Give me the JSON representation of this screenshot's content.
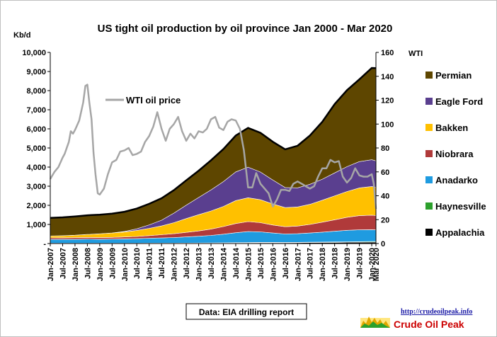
{
  "chart_data": {
    "type": "area",
    "title": "US tight oil production by oil province Jan 2000 - Mar 2020",
    "ylabel_left": "Kb/d",
    "ylabel_right": "WTI",
    "ylim_left": [
      0,
      10000
    ],
    "ylim_right": [
      0,
      160
    ],
    "yticks_left": [
      "-",
      "1,000",
      "2,000",
      "3,000",
      "4,000",
      "5,000",
      "6,000",
      "7,000",
      "8,000",
      "9,000",
      "10,000"
    ],
    "yticks_right": [
      "0",
      "20",
      "40",
      "60",
      "80",
      "100",
      "120",
      "140",
      "160"
    ],
    "x_tick_labels": [
      "Jan-2007",
      "Jul-2007",
      "Jan-2008",
      "Jul-2008",
      "Jan-2009",
      "Jul-2009",
      "Jan-2010",
      "Jul-2010",
      "Jan-2011",
      "Jul-2011",
      "Jan-2012",
      "Jul-2012",
      "Jan-2013",
      "Jul-2013",
      "Jan-2014",
      "Jul-2014",
      "Jan-2015",
      "Jul-2015",
      "Jan-2016",
      "Jul-2016",
      "Jan-2017",
      "Jul-2017",
      "Jan-2018",
      "Jul-2018",
      "Jan-2019",
      "Jul-2019",
      "Jan-2020",
      "Mar 2020"
    ],
    "x_tick_dates": [
      2007.0,
      2007.5,
      2008.0,
      2008.5,
      2009.0,
      2009.5,
      2010.0,
      2010.5,
      2011.0,
      2011.5,
      2012.0,
      2012.5,
      2013.0,
      2013.5,
      2014.0,
      2014.5,
      2015.0,
      2015.5,
      2016.0,
      2016.5,
      2017.0,
      2017.5,
      2018.0,
      2018.5,
      2019.0,
      2019.5,
      2020.0,
      2020.17
    ],
    "x_range": [
      2007.0,
      2020.17
    ],
    "x": [
      2007.0,
      2007.5,
      2008.0,
      2008.5,
      2009.0,
      2009.5,
      2010.0,
      2010.5,
      2011.0,
      2011.5,
      2012.0,
      2012.5,
      2013.0,
      2013.5,
      2014.0,
      2014.5,
      2015.0,
      2015.5,
      2016.0,
      2016.5,
      2017.0,
      2017.5,
      2018.0,
      2018.5,
      2019.0,
      2019.5,
      2020.0,
      2020.17
    ],
    "series": [
      {
        "name": "Appalachia",
        "color": "#000000",
        "values": [
          5,
          5,
          5,
          6,
          6,
          6,
          7,
          7,
          8,
          9,
          10,
          12,
          15,
          18,
          22,
          28,
          35,
          40,
          42,
          42,
          45,
          50,
          55,
          60,
          65,
          70,
          75,
          75
        ]
      },
      {
        "name": "Haynesville",
        "color": "#2ca02c",
        "values": [
          10,
          10,
          10,
          11,
          11,
          11,
          12,
          12,
          13,
          13,
          14,
          15,
          16,
          17,
          18,
          20,
          22,
          22,
          20,
          18,
          19,
          20,
          22,
          25,
          28,
          30,
          32,
          32
        ]
      },
      {
        "name": "Anadarko",
        "color": "#1f9be0",
        "values": [
          200,
          205,
          210,
          215,
          210,
          215,
          225,
          235,
          255,
          270,
          290,
          320,
          350,
          390,
          450,
          520,
          570,
          550,
          490,
          440,
          450,
          480,
          520,
          560,
          600,
          620,
          620,
          610
        ]
      },
      {
        "name": "Niobrara",
        "color": "#b03a3a",
        "values": [
          80,
          80,
          82,
          85,
          85,
          90,
          100,
          115,
          140,
          170,
          200,
          240,
          280,
          330,
          400,
          480,
          520,
          480,
          420,
          380,
          400,
          450,
          520,
          600,
          680,
          740,
          760,
          750
        ]
      },
      {
        "name": "Bakken",
        "color": "#ffc000",
        "values": [
          100,
          110,
          130,
          160,
          200,
          230,
          260,
          320,
          380,
          460,
          580,
          720,
          850,
          950,
          1050,
          1200,
          1250,
          1200,
          1100,
          1000,
          1000,
          1050,
          1150,
          1250,
          1350,
          1450,
          1500,
          1480
        ]
      },
      {
        "name": "Eagle Ford",
        "color": "#5a3f8f",
        "values": [
          0,
          0,
          0,
          0,
          0,
          5,
          30,
          80,
          180,
          300,
          500,
          700,
          900,
          1100,
          1300,
          1500,
          1600,
          1450,
          1250,
          1050,
          1000,
          1050,
          1100,
          1200,
          1300,
          1380,
          1400,
          1380
        ]
      },
      {
        "name": "Permian",
        "color": "#5e4600",
        "values": [
          950,
          960,
          980,
          1000,
          1000,
          1010,
          1030,
          1060,
          1100,
          1150,
          1200,
          1300,
          1400,
          1550,
          1700,
          1900,
          2050,
          2050,
          2000,
          2000,
          2200,
          2550,
          3000,
          3600,
          4000,
          4300,
          4800,
          4850
        ]
      }
    ],
    "wti": {
      "name": "WTI oil price",
      "color": "#a6a6a6",
      "x": [
        2007.0,
        2007.17,
        2007.33,
        2007.5,
        2007.58,
        2007.75,
        2007.83,
        2007.92,
        2008.0,
        2008.17,
        2008.33,
        2008.42,
        2008.5,
        2008.58,
        2008.67,
        2008.75,
        2008.83,
        2008.92,
        2009.0,
        2009.17,
        2009.33,
        2009.5,
        2009.67,
        2009.83,
        2010.0,
        2010.17,
        2010.33,
        2010.5,
        2010.67,
        2010.83,
        2011.0,
        2011.17,
        2011.33,
        2011.5,
        2011.67,
        2011.83,
        2012.0,
        2012.17,
        2012.33,
        2012.5,
        2012.67,
        2012.83,
        2013.0,
        2013.17,
        2013.33,
        2013.5,
        2013.67,
        2013.83,
        2014.0,
        2014.17,
        2014.33,
        2014.5,
        2014.67,
        2014.83,
        2015.0,
        2015.17,
        2015.33,
        2015.5,
        2015.67,
        2015.83,
        2016.0,
        2016.17,
        2016.33,
        2016.5,
        2016.67,
        2016.83,
        2017.0,
        2017.17,
        2017.33,
        2017.5,
        2017.67,
        2017.83,
        2018.0,
        2018.17,
        2018.33,
        2018.5,
        2018.67,
        2018.83,
        2019.0,
        2019.17,
        2019.33,
        2019.5,
        2019.67,
        2019.83,
        2020.0,
        2020.08,
        2020.17
      ],
      "values": [
        54,
        60,
        64,
        72,
        75,
        85,
        94,
        92,
        95,
        103,
        118,
        132,
        133,
        118,
        104,
        76,
        58,
        42,
        41,
        46,
        58,
        68,
        70,
        77,
        78,
        80,
        74,
        75,
        77,
        85,
        90,
        98,
        110,
        96,
        86,
        96,
        100,
        106,
        94,
        86,
        92,
        88,
        94,
        93,
        96,
        104,
        106,
        97,
        95,
        102,
        104,
        103,
        96,
        78,
        47,
        47,
        59,
        50,
        46,
        42,
        31,
        37,
        45,
        45,
        44,
        50,
        52,
        50,
        48,
        46,
        48,
        56,
        63,
        63,
        70,
        68,
        69,
        56,
        51,
        55,
        63,
        57,
        56,
        56,
        58,
        50,
        29
      ]
    },
    "legend": [
      "Permian",
      "Eagle Ford",
      "Bakken",
      "Niobrara",
      "Anadarko",
      "Haynesville",
      "Appalachia"
    ],
    "legend_position": "right",
    "annotations": [
      "WTI oil price"
    ],
    "grid": false
  },
  "footer": {
    "source": "Data: EIA drilling report",
    "url": "http://crudeoilpeak.info",
    "brand": "Crude Oil Peak"
  }
}
